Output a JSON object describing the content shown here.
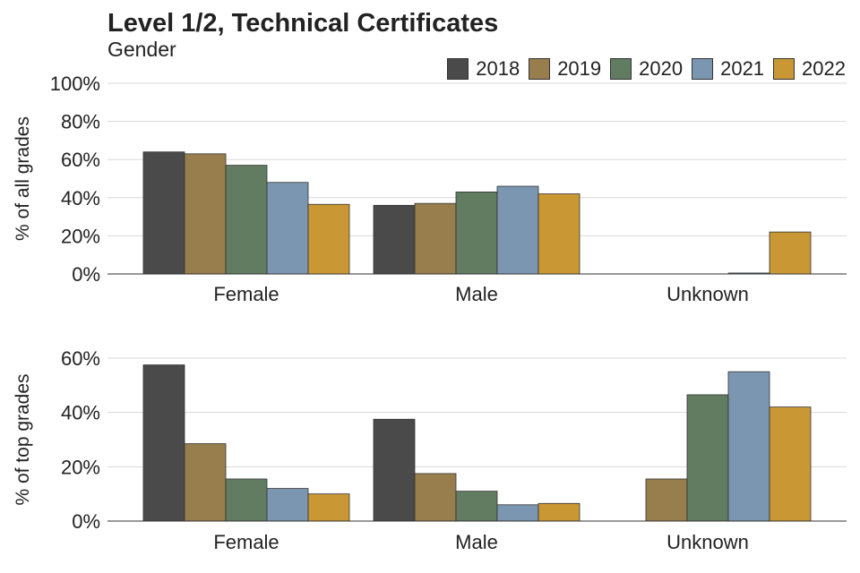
{
  "title": "Level 1/2, Technical Certificates",
  "subtitle": "Gender",
  "colors": {
    "2018": "#4a4a4a",
    "2019": "#977e4c",
    "2020": "#617c61",
    "2021": "#7b96b0",
    "2022": "#c99834"
  },
  "chart_data": [
    {
      "type": "bar",
      "ylabel": "% of all grades",
      "ylim": [
        0,
        100
      ],
      "yticks": [
        "0%",
        "20%",
        "40%",
        "60%",
        "80%",
        "100%"
      ],
      "ytick_values": [
        0,
        20,
        40,
        60,
        80,
        100
      ],
      "categories": [
        "Female",
        "Male",
        "Unknown"
      ],
      "grid": true,
      "legend": "top-right",
      "series": [
        {
          "name": "2018",
          "values": [
            64,
            36,
            0
          ]
        },
        {
          "name": "2019",
          "values": [
            63,
            37,
            0
          ]
        },
        {
          "name": "2020",
          "values": [
            57,
            43,
            0
          ]
        },
        {
          "name": "2021",
          "values": [
            48,
            46,
            0.5
          ]
        },
        {
          "name": "2022",
          "values": [
            36.5,
            42,
            22
          ]
        }
      ]
    },
    {
      "type": "bar",
      "ylabel": "% of top grades",
      "ylim": [
        0,
        60
      ],
      "yticks": [
        "0%",
        "20%",
        "40%",
        "60%"
      ],
      "ytick_values": [
        0,
        20,
        40,
        60
      ],
      "categories": [
        "Female",
        "Male",
        "Unknown"
      ],
      "grid": true,
      "series": [
        {
          "name": "2018",
          "values": [
            57.5,
            37.5,
            0
          ]
        },
        {
          "name": "2019",
          "values": [
            28.5,
            17.5,
            15.5
          ]
        },
        {
          "name": "2020",
          "values": [
            15.5,
            11,
            46.5
          ]
        },
        {
          "name": "2021",
          "values": [
            12,
            6,
            55
          ]
        },
        {
          "name": "2022",
          "values": [
            10,
            6.5,
            42
          ]
        }
      ]
    }
  ]
}
